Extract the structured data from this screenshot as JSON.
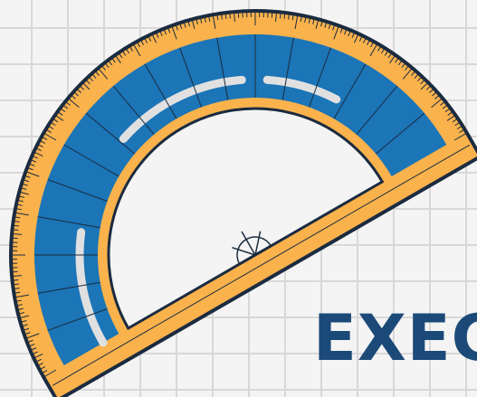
{
  "headline": {
    "text": "EXEC"
  },
  "illustration": {
    "icon": "protractor-icon",
    "colors": {
      "background": "#f4f4f4",
      "grid": "#d8d8d8",
      "outline": "#1b2b40",
      "body": "#f9b24c",
      "band": "#1b75b7",
      "highlight": "#e0e0e0",
      "headline": "#1c4a78"
    }
  }
}
